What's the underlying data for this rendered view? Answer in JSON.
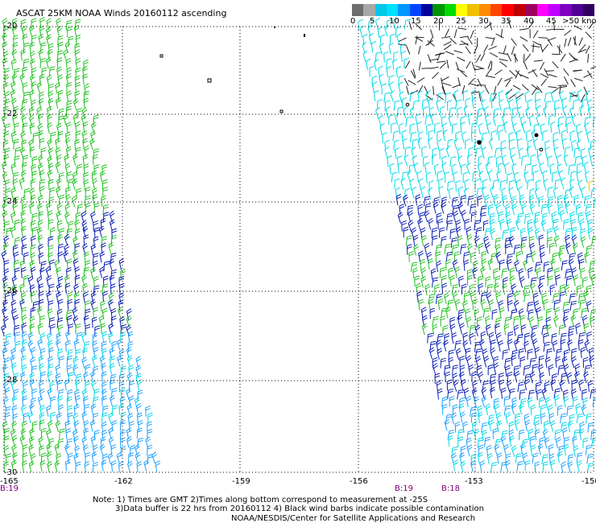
{
  "title": "ASCAT 25KM NOAA Winds 20160112 ascending",
  "scale": {
    "colors": [
      "#6e6e6e",
      "#a8a8a8",
      "#00c8e6",
      "#00e0ff",
      "#0096ff",
      "#0046ff",
      "#0000a0",
      "#009600",
      "#00dc00",
      "#ffff00",
      "#f0c000",
      "#ff8c00",
      "#ff4600",
      "#ff0000",
      "#c00000",
      "#a00060",
      "#ff00ff",
      "#c000ff",
      "#8000c0",
      "#500096",
      "#300060"
    ],
    "labels": [
      "0",
      "5",
      "10",
      "15",
      "20",
      "25",
      "30",
      "35",
      "40",
      "45",
      ">50 knots"
    ]
  },
  "map": {
    "lon_range": [
      -165,
      -150
    ],
    "lat_range": [
      -30,
      -20
    ],
    "lon_ticks": [
      "-165",
      "-162",
      "-159",
      "-156",
      "-153",
      "-150"
    ],
    "lat_ticks": [
      "-20",
      "-22",
      "-24",
      "-26",
      "-28",
      "-30"
    ],
    "pass_labels": [
      "B:19",
      "B:19",
      "B:18"
    ],
    "barb_colors": {
      "calm": "#222222",
      "light": "#00d8e6",
      "moderate": "#1ea0ff",
      "fresh": "#0a1eb4",
      "strong": "#22c022",
      "yellow": "#f0c000"
    }
  },
  "notes": {
    "line1": "Note: 1) Times are GMT 2)Times along bottom correspond to measurement at -25S",
    "line2": "3)Data buffer is 22 hrs from 20160112 4) Black wind barbs indicate possible contamination"
  },
  "credit": "NOAA/NESDIS/Center for Satellite Applications and Research"
}
